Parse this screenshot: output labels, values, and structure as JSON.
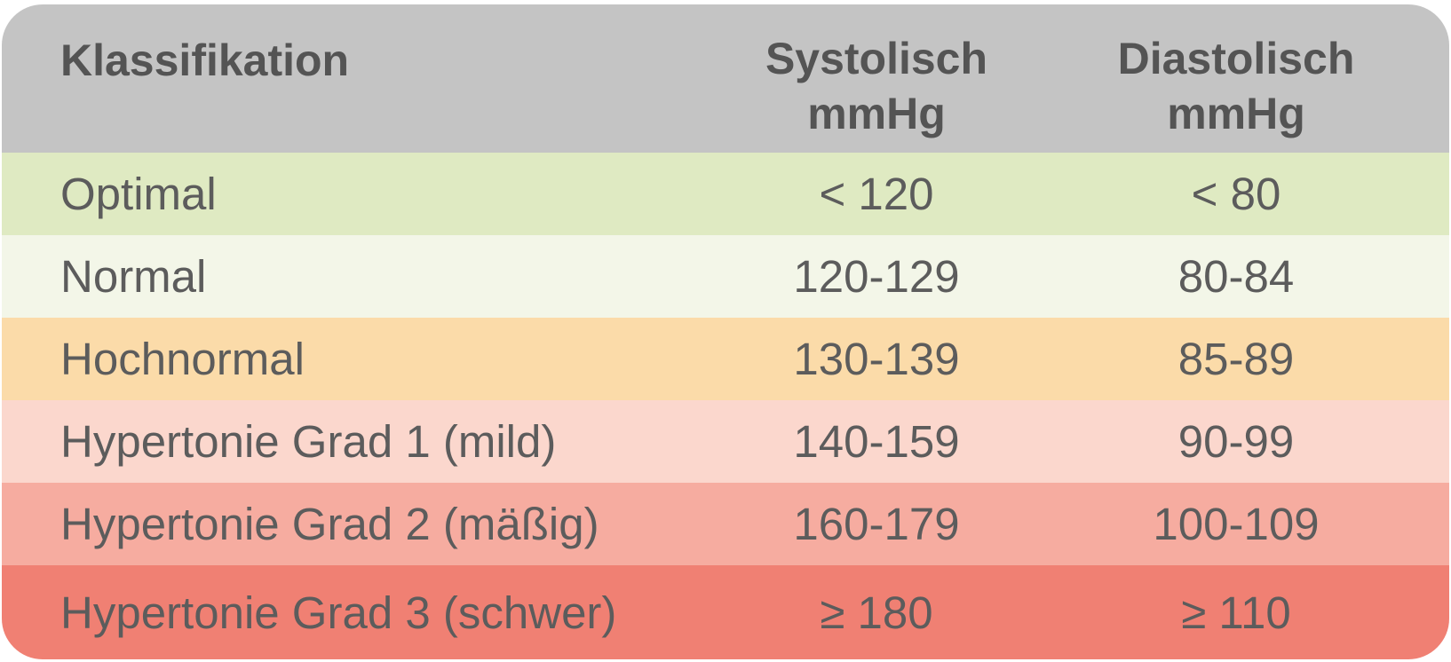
{
  "header": {
    "classification": "Klassifikation",
    "systolic_line1": "Systolisch",
    "systolic_line2": "mmHg",
    "diastolic_line1": "Diastolisch",
    "diastolic_line2": "mmHg",
    "color": "#c4c4c4"
  },
  "rows": [
    {
      "label": "Optimal",
      "systolic": "< 120",
      "diastolic": "< 80",
      "color": "#dfeac2"
    },
    {
      "label": "Normal",
      "systolic": "120-129",
      "diastolic": "80-84",
      "color": "#f3f6e8"
    },
    {
      "label": "Hochnormal",
      "systolic": "130-139",
      "diastolic": "85-89",
      "color": "#fbdba9"
    },
    {
      "label": "Hypertonie Grad 1 (mild)",
      "systolic": "140-159",
      "diastolic": "90-99",
      "color": "#fbd7cd"
    },
    {
      "label": "Hypertonie Grad 2 (mäßig)",
      "systolic": "160-179",
      "diastolic": "100-109",
      "color": "#f6aca0"
    },
    {
      "label": "Hypertonie Grad 3 (schwer)",
      "systolic": "≥ 180",
      "diastolic": "≥ 110",
      "color": "#f08073"
    }
  ]
}
